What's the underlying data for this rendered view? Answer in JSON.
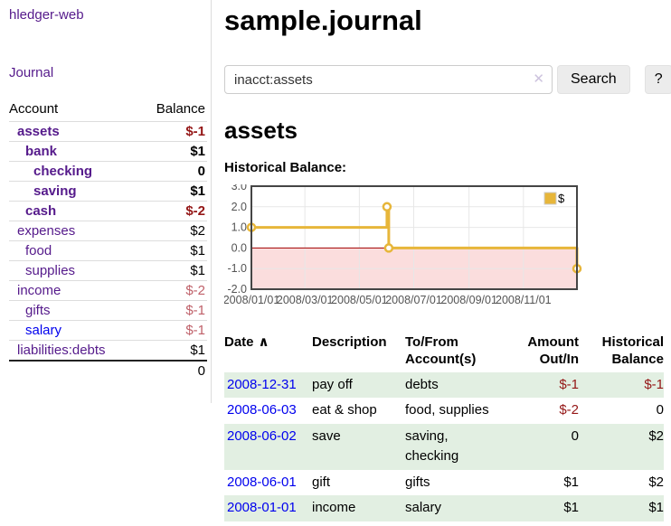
{
  "colors": {
    "link_purple": "#551a8b",
    "link_blue": "#0000ee",
    "negative_dark_red": "#941616",
    "negative_rosy": "#bf6069",
    "row_stripe_green": "#e2efe2",
    "series_gold": "#e7b63a",
    "chart_border": "#454545",
    "negative_region_pink": "#fbdddd",
    "zero_line_red": "#a40000"
  },
  "sidebar": {
    "brand": "hledger-web",
    "journal_link": "Journal",
    "accounts_table": {
      "headers": {
        "account": "Account",
        "balance": "Balance"
      },
      "rows": [
        {
          "name": "assets",
          "indent": 1,
          "bold": true,
          "name_color": "#551a8b",
          "balance": "$-1",
          "balance_color": "#941616"
        },
        {
          "name": "bank",
          "indent": 2,
          "bold": true,
          "name_color": "#551a8b",
          "balance": "$1",
          "balance_color": "#000000"
        },
        {
          "name": "checking",
          "indent": 3,
          "bold": true,
          "name_color": "#551a8b",
          "balance": "0",
          "balance_color": "#000000"
        },
        {
          "name": "saving",
          "indent": 3,
          "bold": true,
          "name_color": "#551a8b",
          "balance": "$1",
          "balance_color": "#000000"
        },
        {
          "name": "cash",
          "indent": 2,
          "bold": true,
          "name_color": "#551a8b",
          "balance": "$-2",
          "balance_color": "#941616"
        },
        {
          "name": "expenses",
          "indent": 1,
          "bold": false,
          "name_color": "#551a8b",
          "balance": "$2",
          "balance_color": "#000000"
        },
        {
          "name": "food",
          "indent": 2,
          "bold": false,
          "name_color": "#551a8b",
          "balance": "$1",
          "balance_color": "#000000"
        },
        {
          "name": "supplies",
          "indent": 2,
          "bold": false,
          "name_color": "#551a8b",
          "balance": "$1",
          "balance_color": "#000000"
        },
        {
          "name": "income",
          "indent": 1,
          "bold": false,
          "name_color": "#551a8b",
          "balance": "$-2",
          "balance_color": "#bf6069"
        },
        {
          "name": "gifts",
          "indent": 2,
          "bold": false,
          "name_color": "#551a8b",
          "balance": "$-1",
          "balance_color": "#bf6069"
        },
        {
          "name": "salary",
          "indent": 2,
          "bold": false,
          "name_color": "#0000ee",
          "balance": "$-1",
          "balance_color": "#bf6069"
        },
        {
          "name": "liabilities:debts",
          "indent": 1,
          "bold": false,
          "name_color": "#551a8b",
          "balance": "$1",
          "balance_color": "#000000"
        }
      ],
      "total": "0"
    }
  },
  "header": {
    "title": "sample.journal"
  },
  "search": {
    "query": "inacct:assets",
    "clear_icon": "✕",
    "search_label": "Search",
    "help_label": "?"
  },
  "account_view": {
    "heading": "assets",
    "chart_label": "Historical Balance:"
  },
  "chart_data": {
    "type": "line",
    "step": true,
    "title": "Historical Balance",
    "x_start": "2008-01-01",
    "x_span_days": 365,
    "series": [
      {
        "name": "$",
        "color": "#e7b63a",
        "points": [
          {
            "date": "2008-01-01",
            "value": 1.0
          },
          {
            "date": "2008-06-01",
            "value": 2.0
          },
          {
            "date": "2008-06-03",
            "value": 0.0
          },
          {
            "date": "2008-12-31",
            "value": -1.0
          }
        ]
      }
    ],
    "ylim": [
      -2.0,
      3.0
    ],
    "yticks": [
      3.0,
      2.0,
      1.0,
      0.0,
      -1.0,
      -2.0
    ],
    "xticks": [
      "2008/01/01",
      "2008/03/01",
      "2008/05/01",
      "2008/07/01",
      "2008/09/01",
      "2008/11/01"
    ],
    "grid": true,
    "legend_position": "top-right",
    "negative_region_color": "#fbdddd",
    "zero_line_color": "#a40000",
    "tick_label_color": "#545454"
  },
  "register_table": {
    "sort_indicator": "∧",
    "headers": [
      {
        "label": "Date",
        "sorted": true,
        "align": "left"
      },
      {
        "label": "Description",
        "align": "left"
      },
      {
        "label": "To/From Account(s)",
        "align": "left"
      },
      {
        "label": "Amount Out/In",
        "align": "right"
      },
      {
        "label": "Historical Balance",
        "align": "right"
      }
    ],
    "rows": [
      {
        "date": "2008-12-31",
        "description": "pay off",
        "accounts": "debts",
        "amount": "$-1",
        "amount_negative": true,
        "balance": "$-1",
        "balance_negative": true,
        "shaded": true
      },
      {
        "date": "2008-06-03",
        "description": "eat & shop",
        "accounts": "food, supplies",
        "amount": "$-2",
        "amount_negative": true,
        "balance": "0",
        "balance_negative": false,
        "shaded": false
      },
      {
        "date": "2008-06-02",
        "description": "save",
        "accounts": "saving, checking",
        "amount": "0",
        "amount_negative": false,
        "balance": "$2",
        "balance_negative": false,
        "shaded": true
      },
      {
        "date": "2008-06-01",
        "description": "gift",
        "accounts": "gifts",
        "amount": "$1",
        "amount_negative": false,
        "balance": "$2",
        "balance_negative": false,
        "shaded": false
      },
      {
        "date": "2008-01-01",
        "description": "income",
        "accounts": "salary",
        "amount": "$1",
        "amount_negative": false,
        "balance": "$1",
        "balance_negative": false,
        "shaded": true
      }
    ]
  }
}
